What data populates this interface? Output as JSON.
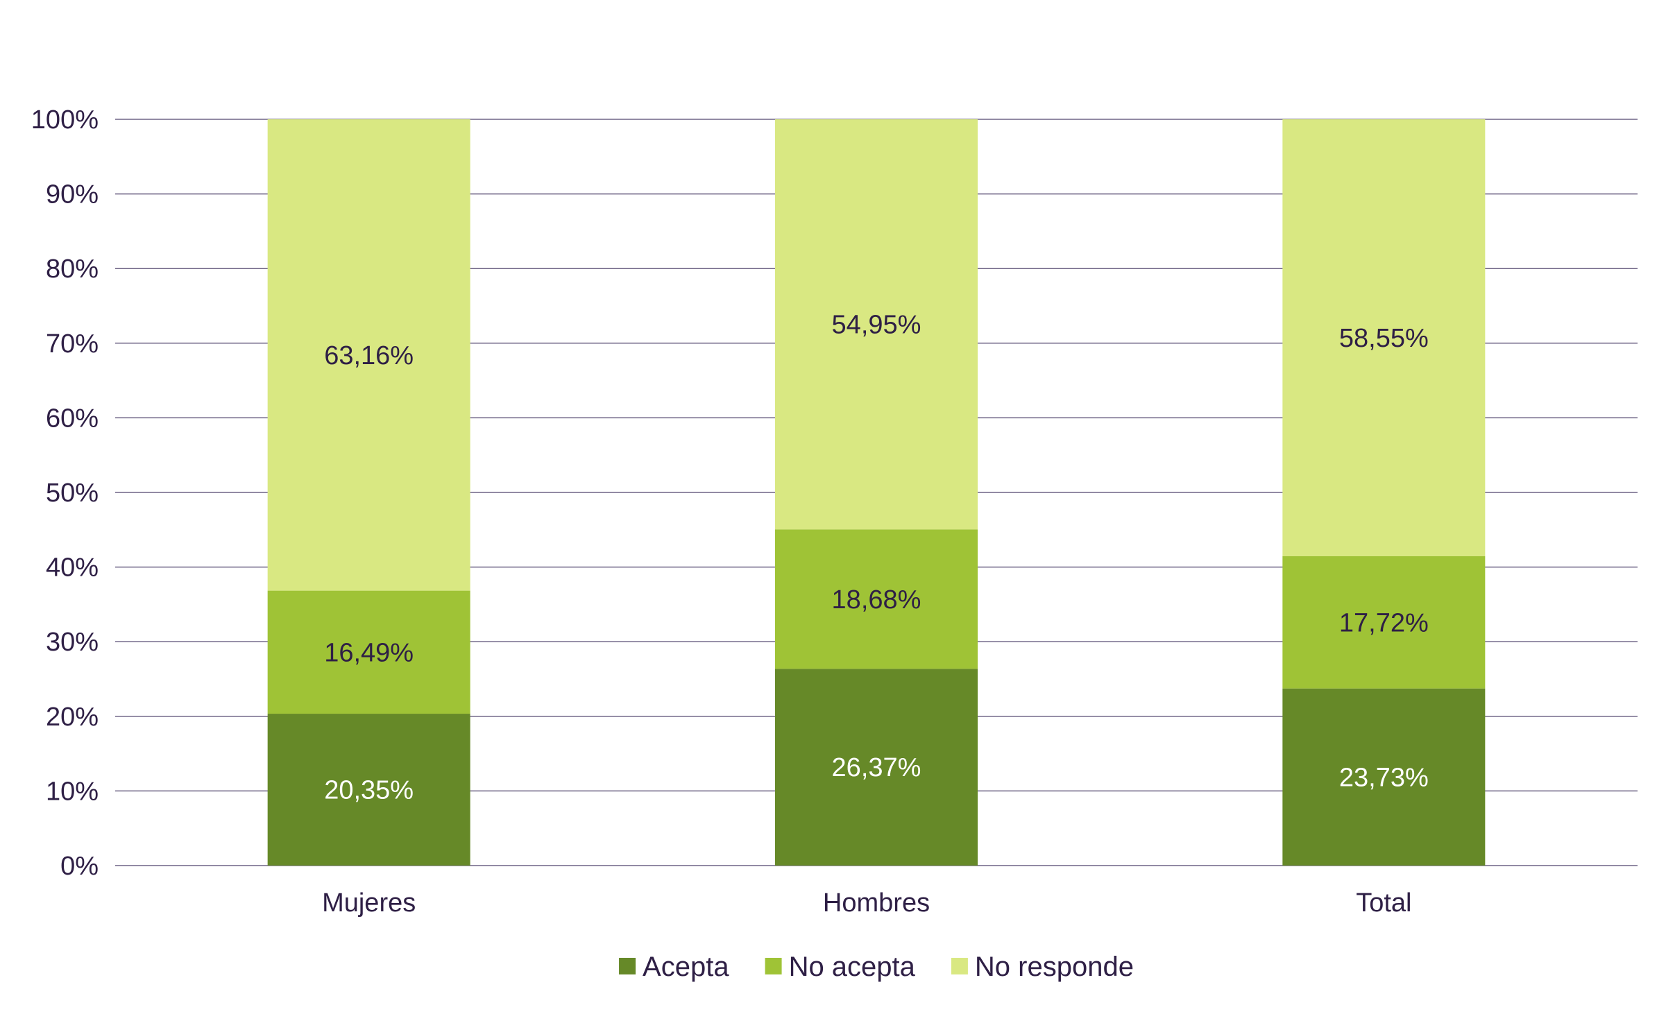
{
  "chart_data": {
    "type": "bar",
    "stacked": true,
    "categories": [
      "Mujeres",
      "Hombres",
      "Total"
    ],
    "series": [
      {
        "name": "Acepta",
        "values": [
          20.35,
          26.37,
          23.73
        ],
        "labels": [
          "20,35%",
          "26,37%",
          "23,73%"
        ],
        "color": "#668928",
        "label_color": "#ffffff"
      },
      {
        "name": "No acepta",
        "values": [
          16.49,
          18.68,
          17.72
        ],
        "labels": [
          "16,49%",
          "18,68%",
          "17,72%"
        ],
        "color": "#9fc336",
        "label_color": "#2e1f45"
      },
      {
        "name": "No responde",
        "values": [
          63.16,
          54.95,
          58.55
        ],
        "labels": [
          "63,16%",
          "54,95%",
          "58,55%"
        ],
        "color": "#d9e882",
        "label_color": "#2e1f45"
      }
    ],
    "ylim": [
      0,
      100
    ],
    "yticks": [
      "0%",
      "10%",
      "20%",
      "30%",
      "40%",
      "50%",
      "60%",
      "70%",
      "80%",
      "90%",
      "100%"
    ],
    "grid": true,
    "legend_position": "bottom",
    "title": "",
    "xlabel": "",
    "ylabel": "",
    "axis_text_color": "#2e1f45",
    "grid_color": "#6e6385"
  }
}
